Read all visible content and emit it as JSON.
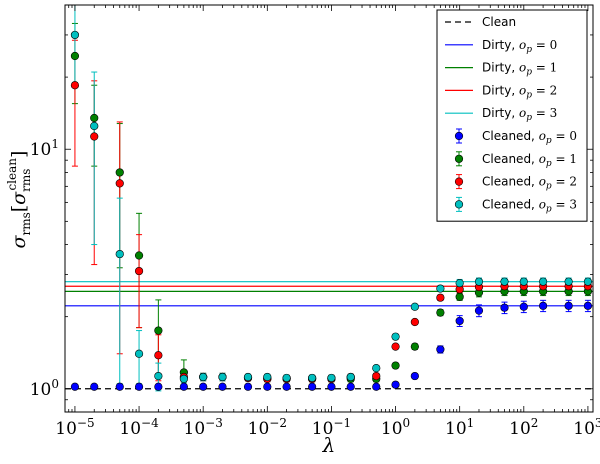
{
  "chart_data": {
    "type": "scatter",
    "xscale": "log",
    "yscale": "log",
    "xlim": [
      7e-06,
      1200.0
    ],
    "ylim": [
      0.8,
      40
    ],
    "xlabel": "λ",
    "ylabel_main": "σ",
    "ylabel_sub": "rms",
    "ylabel_bracket_main": "σ",
    "ylabel_bracket_sub": "rms",
    "ylabel_bracket_sup": "clean",
    "xticks": [
      {
        "value": 1e-05,
        "base": "10",
        "exp": "−5"
      },
      {
        "value": 0.0001,
        "base": "10",
        "exp": "−4"
      },
      {
        "value": 0.001,
        "base": "10",
        "exp": "−3"
      },
      {
        "value": 0.01,
        "base": "10",
        "exp": "−2"
      },
      {
        "value": 0.1,
        "base": "10",
        "exp": "−1"
      },
      {
        "value": 1.0,
        "base": "10",
        "exp": "0"
      },
      {
        "value": 10.0,
        "base": "10",
        "exp": "1"
      },
      {
        "value": 100.0,
        "base": "10",
        "exp": "2"
      },
      {
        "value": 1000.0,
        "base": "10",
        "exp": "3"
      }
    ],
    "yticks": [
      {
        "value": 1,
        "base": "10",
        "exp": "0"
      },
      {
        "value": 10,
        "base": "10",
        "exp": "1"
      }
    ],
    "legend_position": "top-right",
    "clean_line": {
      "name": "Clean",
      "value": 1.0,
      "color": "#000000",
      "style": "dashed"
    },
    "dirty_lines": [
      {
        "name_text": "Dirty, ",
        "op": "0",
        "value": 2.22,
        "color": "#0000ff"
      },
      {
        "name_text": "Dirty, ",
        "op": "1",
        "value": 2.55,
        "color": "#008000"
      },
      {
        "name_text": "Dirty, ",
        "op": "2",
        "value": 2.68,
        "color": "#ff0000"
      },
      {
        "name_text": "Dirty, ",
        "op": "3",
        "value": 2.8,
        "color": "#00bfbf"
      }
    ],
    "x": [
      1e-05,
      2e-05,
      5e-05,
      0.0001,
      0.0002,
      0.0005,
      0.001,
      0.002,
      0.005,
      0.01,
      0.02,
      0.05,
      0.1,
      0.2,
      0.5,
      1,
      2,
      5,
      10,
      20,
      50,
      100,
      200,
      500,
      1000
    ],
    "series": [
      {
        "name_text": "Cleaned, ",
        "op": "0",
        "color": "#0000ff",
        "values": [
          1.02,
          1.02,
          1.02,
          1.02,
          1.02,
          1.02,
          1.02,
          1.02,
          1.02,
          1.02,
          1.02,
          1.02,
          1.02,
          1.02,
          1.02,
          1.04,
          1.13,
          1.46,
          1.92,
          2.12,
          2.18,
          2.2,
          2.22,
          2.22,
          2.22
        ],
        "err": [
          0,
          0,
          0,
          0,
          0,
          0,
          0,
          0,
          0,
          0,
          0,
          0,
          0,
          0,
          0,
          0,
          0,
          0.05,
          0.1,
          0.12,
          0.12,
          0.12,
          0.12,
          0.12,
          0.12
        ]
      },
      {
        "name_text": "Cleaned, ",
        "op": "1",
        "color": "#008000",
        "values": [
          24.5,
          13.5,
          8.0,
          3.6,
          1.75,
          1.17,
          1.12,
          1.12,
          1.11,
          1.1,
          1.1,
          1.1,
          1.1,
          1.1,
          1.1,
          1.25,
          1.5,
          2.08,
          2.42,
          2.52,
          2.55,
          2.55,
          2.55,
          2.55,
          2.55
        ],
        "err": [
          9,
          5,
          4.8,
          1.8,
          0.6,
          0.15,
          0.04,
          0.04,
          0.03,
          0.03,
          0.03,
          0.03,
          0.03,
          0.03,
          0.03,
          0.03,
          0.04,
          0.06,
          0.08,
          0.1,
          0.1,
          0.1,
          0.1,
          0.1,
          0.1
        ]
      },
      {
        "name_text": "Cleaned, ",
        "op": "2",
        "color": "#ff0000",
        "values": [
          18.5,
          11.3,
          7.2,
          3.1,
          1.38,
          1.12,
          1.12,
          1.12,
          1.11,
          1.1,
          1.1,
          1.1,
          1.1,
          1.12,
          1.13,
          1.5,
          1.9,
          2.4,
          2.6,
          2.66,
          2.68,
          2.68,
          2.68,
          2.68,
          2.68
        ],
        "err": [
          10,
          8,
          5.8,
          1.3,
          0.3,
          0.05,
          0.04,
          0.04,
          0.03,
          0.03,
          0.03,
          0.03,
          0.03,
          0.03,
          0.03,
          0.03,
          0.04,
          0.06,
          0.08,
          0.1,
          0.1,
          0.1,
          0.1,
          0.1,
          0.1
        ]
      },
      {
        "name_text": "Cleaned, ",
        "op": "3",
        "color": "#00bfbf",
        "values": [
          30.0,
          12.5,
          3.65,
          1.4,
          1.13,
          1.1,
          1.12,
          1.12,
          1.12,
          1.12,
          1.11,
          1.11,
          1.11,
          1.12,
          1.22,
          1.65,
          2.2,
          2.62,
          2.76,
          2.8,
          2.8,
          2.8,
          2.8,
          2.8,
          2.8
        ],
        "err": [
          11,
          8.5,
          2.6,
          0.35,
          0.15,
          0.04,
          0.04,
          0.04,
          0.03,
          0.03,
          0.03,
          0.03,
          0.03,
          0.03,
          0.03,
          0.04,
          0.05,
          0.07,
          0.1,
          0.1,
          0.1,
          0.1,
          0.1,
          0.1,
          0.1
        ]
      }
    ]
  }
}
